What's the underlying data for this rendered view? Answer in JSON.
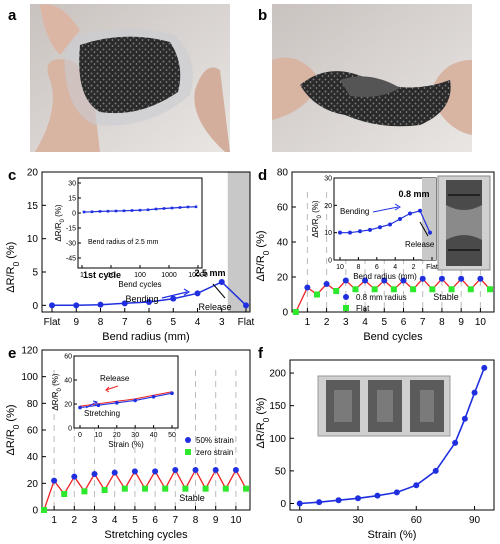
{
  "panels": {
    "a": "a",
    "b": "b",
    "c": "c",
    "d": "d",
    "e": "e",
    "f": "f"
  },
  "colors": {
    "blue": "#1f2fe0",
    "green": "#2ee82e",
    "red": "#ee2222",
    "gray": "#c8c8c8"
  },
  "chart_data": [
    {
      "id": "c",
      "type": "line",
      "xlabel": "Bend radius (mm)",
      "ylabel": "ΔR/R0 (%)",
      "ylim": [
        -1,
        20
      ],
      "yticks": [
        "0",
        "5",
        "10",
        "15",
        "20"
      ],
      "categories": [
        "Flat",
        "9",
        "8",
        "7",
        "6",
        "5",
        "4",
        "3",
        "Flat"
      ],
      "series": [
        {
          "values": [
            0,
            0,
            0.1,
            0.3,
            0.5,
            1.0,
            1.8,
            3.5,
            0
          ]
        }
      ],
      "annotations": {
        "first_cycle": "1st cycle",
        "bending": "Bending",
        "release": "Release",
        "radius": "2.5 mm"
      },
      "inset": {
        "xlabel": "Bend cycles",
        "ylabel": "ΔR/R0 (%)",
        "ylim": [
          -55,
          35
        ],
        "yticks": [
          "30",
          "15",
          "0",
          "-15",
          "-30",
          "-45"
        ],
        "xticks": [
          "1",
          "10",
          "100",
          "1000",
          "10000"
        ],
        "series": [
          {
            "values": [
              1,
              1.2,
              1.6,
              1.8,
              2.0,
              2.2,
              2.5,
              2.8,
              3.2,
              4.0,
              4.5,
              5.0,
              5.5,
              6.0,
              6.2
            ]
          }
        ],
        "label": "Bend radius of 2.5 mm"
      }
    },
    {
      "id": "d",
      "type": "line",
      "xlabel": "Bend cycles",
      "ylabel": "ΔR/R0 (%)",
      "ylim": [
        0,
        80
      ],
      "yticks": [
        "0",
        "20",
        "40",
        "60",
        "80"
      ],
      "xlim": [
        0.2,
        10.5
      ],
      "xticks": [
        "1",
        "2",
        "3",
        "4",
        "5",
        "6",
        "7",
        "8",
        "9",
        "10"
      ],
      "series": [
        {
          "name": "0.8 mm radius",
          "x": [
            1,
            2,
            3,
            4,
            5,
            6,
            7,
            8,
            9,
            10
          ],
          "values": [
            14,
            16,
            18,
            18,
            18,
            18,
            19,
            19,
            19,
            19
          ]
        },
        {
          "name": "Flat",
          "x": [
            0.4,
            1.5,
            2.5,
            3.5,
            4.5,
            5.5,
            6.5,
            7.5,
            8.5,
            9.5,
            10.5
          ],
          "values": [
            0,
            10,
            12,
            13,
            13,
            13,
            13,
            13,
            13,
            13,
            13
          ]
        }
      ],
      "annotations": {
        "stable": "Stable"
      },
      "inset": {
        "xlabel": "Bend radius (mm)",
        "ylabel": "ΔR/R0 (%)",
        "ylim": [
          0,
          30
        ],
        "yticks": [
          "0",
          "10",
          "20",
          "30"
        ],
        "xticks": [
          "10",
          "8",
          "6",
          "4",
          "2",
          "Flat"
        ],
        "series": [
          {
            "values": [
              10,
              10,
              10.5,
              11,
              12,
              13,
              15,
              17,
              18,
              10
            ]
          }
        ],
        "bending": "Bending",
        "release": "Release",
        "radius": "0.8 mm"
      }
    },
    {
      "id": "e",
      "type": "line",
      "xlabel": "Stretching cycles",
      "ylabel": "ΔR/R0 (%)",
      "ylim": [
        0,
        120
      ],
      "yticks": [
        "0",
        "20",
        "40",
        "60",
        "80",
        "100",
        "120"
      ],
      "xlim": [
        0.4,
        10.5
      ],
      "xticks": [
        "1",
        "2",
        "3",
        "4",
        "5",
        "6",
        "7",
        "8",
        "9",
        "10"
      ],
      "series": [
        {
          "name": "50% strain",
          "x": [
            1,
            2,
            3,
            4,
            5,
            6,
            7,
            8,
            9,
            10
          ],
          "values": [
            22,
            25,
            27,
            28,
            29,
            29,
            30,
            30,
            30,
            30
          ]
        },
        {
          "name": "zero strain",
          "x": [
            0.5,
            1.5,
            2.5,
            3.5,
            4.5,
            5.5,
            6.5,
            7.5,
            8.5,
            9.5,
            10.5
          ],
          "values": [
            0,
            12,
            14,
            15,
            16,
            16,
            16,
            16,
            16,
            16,
            16
          ]
        }
      ],
      "annotations": {
        "stable": "Stable"
      },
      "inset": {
        "xlabel": "Strain (%)",
        "ylabel": "ΔR/R0 (%)",
        "ylim": [
          0,
          60
        ],
        "yticks": [
          "0",
          "20",
          "40",
          "60"
        ],
        "xticks": [
          "0",
          "10",
          "20",
          "30",
          "40",
          "50"
        ],
        "series": [
          {
            "x": [
              0,
              10,
              20,
              30,
              40,
              50
            ],
            "values": [
              17,
              19,
              21,
              23,
              26,
              29
            ]
          }
        ],
        "release": "Release",
        "stretching": "Stretching"
      }
    },
    {
      "id": "f",
      "type": "line",
      "xlabel": "Strain (%)",
      "ylabel": "ΔR/R0 (%)",
      "xlim": [
        -5,
        100
      ],
      "ylim": [
        -10,
        220
      ],
      "xticks": [
        "0",
        "30",
        "60",
        "90"
      ],
      "yticks": [
        "0",
        "50",
        "100",
        "150",
        "200"
      ],
      "series": [
        {
          "x": [
            0,
            10,
            20,
            30,
            40,
            50,
            60,
            70,
            80,
            85,
            90,
            95
          ],
          "values": [
            0,
            2,
            5,
            8,
            12,
            17,
            28,
            50,
            93,
            130,
            170,
            208
          ]
        }
      ]
    }
  ]
}
